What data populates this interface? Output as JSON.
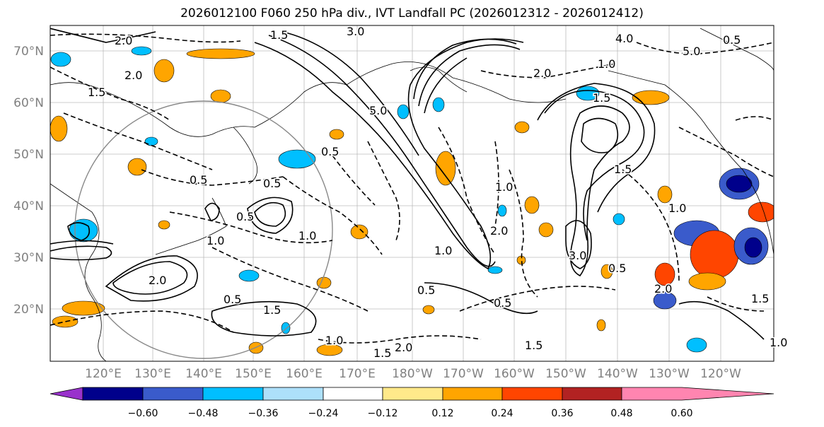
{
  "title": "2026012100 F060 250 hPa div., IVT Landfall PC (2026012312 - 2026012412)",
  "map": {
    "lat_labels": [
      "70°N",
      "60°N",
      "50°N",
      "40°N",
      "30°N",
      "20°N"
    ],
    "lon_labels": [
      "120°E",
      "130°E",
      "140°E",
      "150°E",
      "160°E",
      "170°E",
      "180°W",
      "170°W",
      "160°W",
      "150°W",
      "140°W",
      "130°W",
      "120°W"
    ],
    "contour_labels": [
      "1.5",
      "2.0",
      "3.0",
      "4.0",
      "5.0",
      "0.5",
      "1.0",
      "2.0",
      "1.5",
      "2.0",
      "1.5",
      "5.0",
      "0.5",
      "0.5",
      "1.0",
      "0.5",
      "1.0",
      "2.0",
      "3.0",
      "0.5",
      "1.0",
      "1.5",
      "0.5",
      "2.0",
      "1.0",
      "0.5",
      "1.0",
      "1.5",
      "2.0",
      "0.5",
      "1.5",
      "0.5",
      "1.0",
      "1.5",
      "2.0",
      "1.0",
      "1.5"
    ]
  },
  "colorbar": {
    "ticks": [
      "−0.60",
      "−0.48",
      "−0.36",
      "−0.24",
      "−0.12",
      "0.12",
      "0.24",
      "0.36",
      "0.48",
      "0.60"
    ],
    "colors": [
      "#9932CC",
      "#00008B",
      "#3A5BCB",
      "#00BFFF",
      "#ADE0FA",
      "#FFFFFF",
      "#FFE98A",
      "#FFA500",
      "#FF4500",
      "#B22222",
      "#FF85B0"
    ]
  }
}
